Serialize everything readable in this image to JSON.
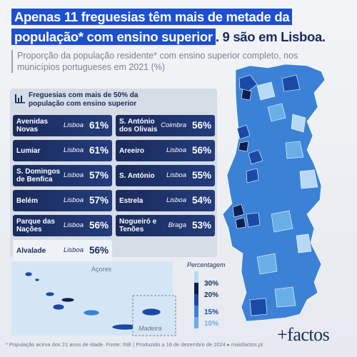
{
  "header": {
    "title_highlight": "Apenas 11 freguesias têm mais de metade da população* com ensino superior",
    "title_rest": ". 9 são em Lisboa.",
    "subtitle": "Proporção da população residente* com ensino superior completo, nos municípios portugueses em 2021 (%)"
  },
  "panel": {
    "title": "Freguesias com mais de 50% da população com ensino superior",
    "items": [
      {
        "name": "Avenidas Novas",
        "city": "Lisboa",
        "value": "61%"
      },
      {
        "name": "Lumiar",
        "city": "Lisboa",
        "value": "61%"
      },
      {
        "name": "S. Domingos de Benfica",
        "city": "Lisboa",
        "value": "57%"
      },
      {
        "name": "Belém",
        "city": "Lisboa",
        "value": "57%"
      },
      {
        "name": "Parque das Nações",
        "city": "Lisboa",
        "value": "56%"
      },
      {
        "name": "Alvalade",
        "city": "Lisboa",
        "value": "56%"
      },
      {
        "name": "S. António dos Olivais",
        "city": "Coimbra",
        "value": "56%"
      },
      {
        "name": "Areeiro",
        "city": "Lisboa",
        "value": "56%"
      },
      {
        "name": "S. António",
        "city": "Lisboa",
        "value": "55%"
      },
      {
        "name": "Estrela",
        "city": "Lisboa",
        "value": "54%"
      },
      {
        "name": "Nogueiró e Tenões",
        "city": "Braga",
        "value": "53%"
      }
    ]
  },
  "map": {
    "labels": [
      "Açores",
      "Madeira"
    ],
    "legend": {
      "title": "Percentagem",
      "labels": [
        "30%",
        "20%",
        "15%",
        "10%"
      ]
    }
  },
  "footer": {
    "note": "* População acima dos 21 anos de idade. Fonte: INE | Produzido a 16 de dezembro de 2024 ▸ maisfactos.pt",
    "logo": "+factos"
  }
}
